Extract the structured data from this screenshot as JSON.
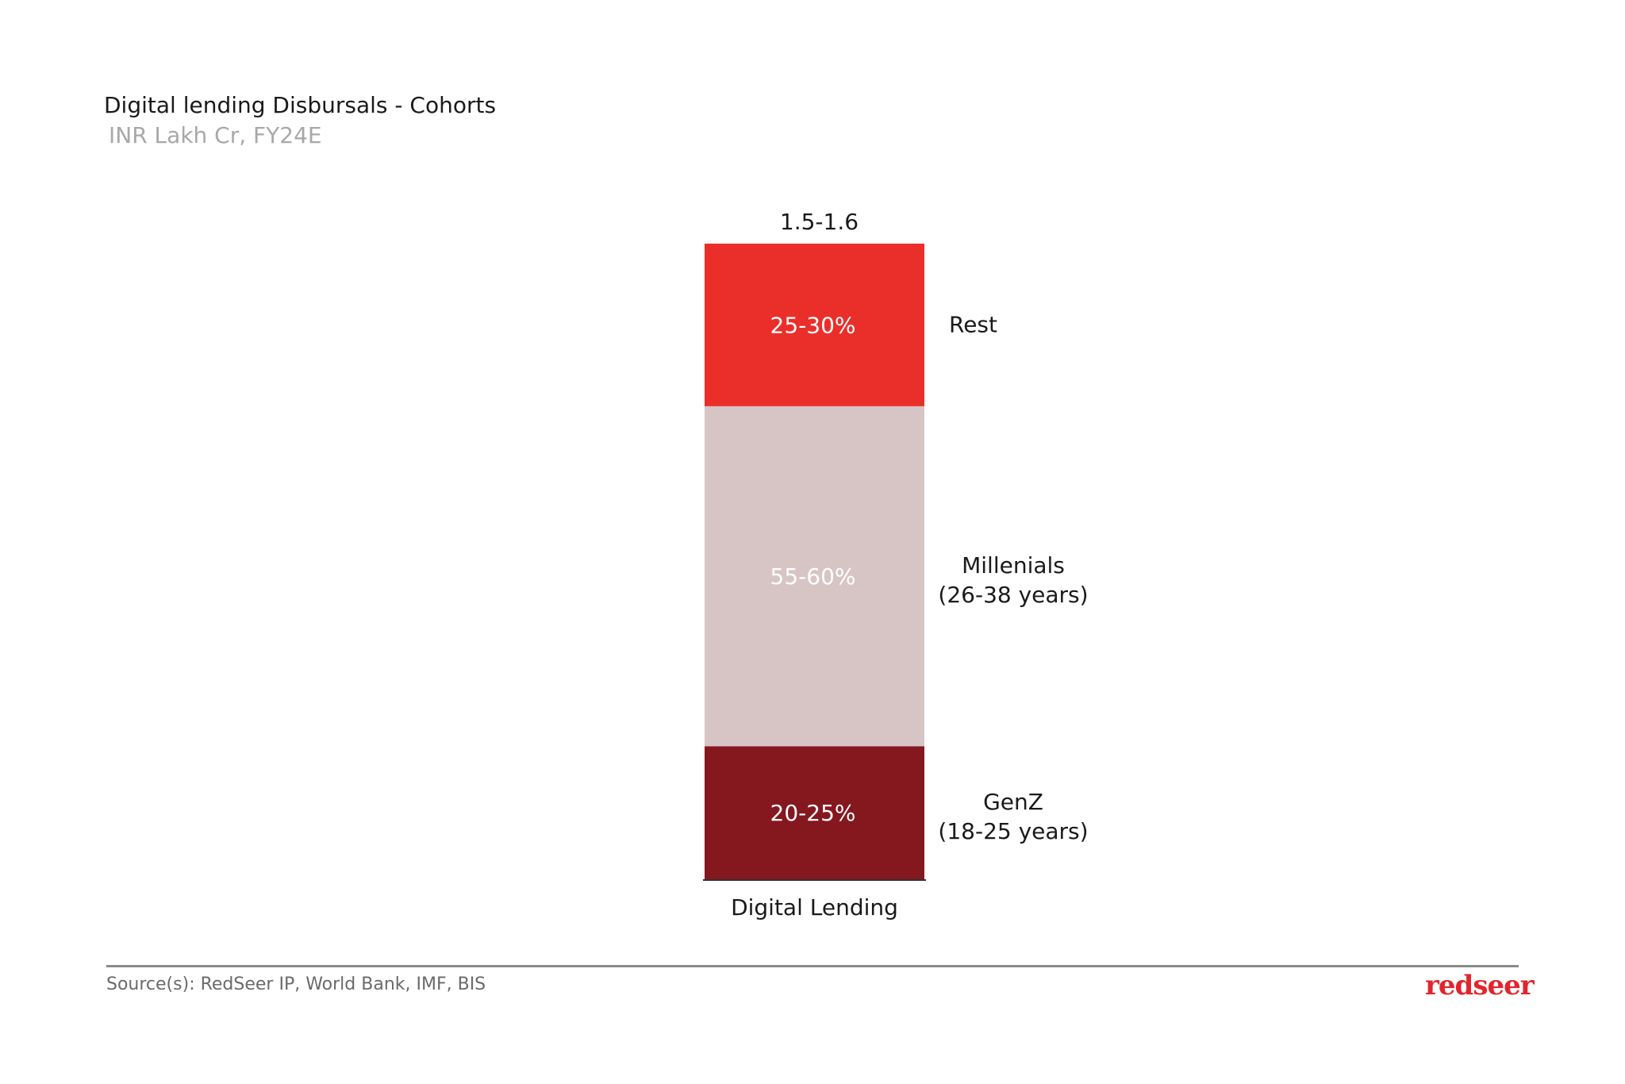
{
  "title": "Digital lending Disbursals - Cohorts",
  "subtitle": "INR Lakh Cr, FY24E",
  "source": "Source(s): RedSeer IP, World Bank, IMF, BIS",
  "logo": "redseer",
  "chart_data": {
    "type": "bar",
    "stacked": true,
    "categories": [
      "Digital Lending"
    ],
    "total_label": "1.5-1.6",
    "series": [
      {
        "name": "GenZ",
        "name_line2": "(18-25 years)",
        "label": "20-25%",
        "value": 22.5,
        "color": "#85171f",
        "text_color": "#ffffff"
      },
      {
        "name": "Millenials",
        "name_line2": "(26-38 years)",
        "label": "55-60%",
        "value": 57.5,
        "color": "#d7c5c6",
        "text_color": "#ffffff"
      },
      {
        "name": "Rest",
        "name_line2": "",
        "label": "25-30%",
        "value": 27.5,
        "color": "#ea2f2a",
        "text_color": "#ffffff"
      }
    ]
  }
}
